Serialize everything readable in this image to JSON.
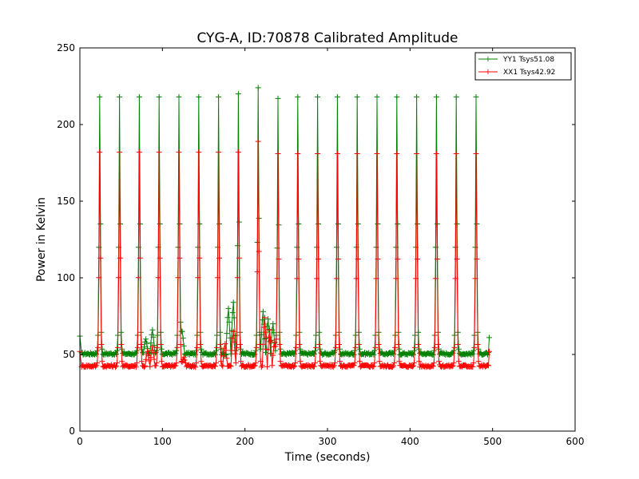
{
  "chart_data": {
    "type": "line",
    "title": "CYG-A, ID:70878 Calibrated Amplitude",
    "xlabel": "Time (seconds)",
    "ylabel": "Power in Kelvin",
    "xlim": [
      0,
      600
    ],
    "ylim": [
      0,
      250
    ],
    "xticks": [
      0,
      100,
      200,
      300,
      400,
      500,
      600
    ],
    "yticks": [
      0,
      50,
      100,
      150,
      200,
      250
    ],
    "xtick_labels": [
      "0",
      "100",
      "200",
      "300",
      "400",
      "500",
      "600"
    ],
    "ytick_labels": [
      "0",
      "50",
      "100",
      "150",
      "200",
      "250"
    ],
    "grid": false,
    "legend_position": "top-right",
    "marker": "+",
    "series": [
      {
        "name": "YY1 Tsys51.08",
        "color": "#008000",
        "baseline": 50.5,
        "peaks": [
          {
            "x": 24,
            "y": 218
          },
          {
            "x": 48,
            "y": 218
          },
          {
            "x": 72,
            "y": 218
          },
          {
            "x": 96,
            "y": 218
          },
          {
            "x": 120,
            "y": 218
          },
          {
            "x": 144,
            "y": 218
          },
          {
            "x": 168,
            "y": 218
          },
          {
            "x": 192,
            "y": 220
          },
          {
            "x": 216,
            "y": 224
          },
          {
            "x": 240,
            "y": 217
          },
          {
            "x": 264,
            "y": 218
          },
          {
            "x": 288,
            "y": 218
          },
          {
            "x": 312,
            "y": 218
          },
          {
            "x": 336,
            "y": 218
          },
          {
            "x": 360,
            "y": 218
          },
          {
            "x": 384,
            "y": 218
          },
          {
            "x": 408,
            "y": 218
          },
          {
            "x": 432,
            "y": 218
          },
          {
            "x": 456,
            "y": 218
          },
          {
            "x": 480,
            "y": 218
          }
        ],
        "bumps": [
          {
            "x": 80,
            "y": 60
          },
          {
            "x": 88,
            "y": 66
          },
          {
            "x": 124,
            "y": 65
          },
          {
            "x": 180,
            "y": 80
          },
          {
            "x": 186,
            "y": 84
          },
          {
            "x": 222,
            "y": 78
          },
          {
            "x": 228,
            "y": 73
          },
          {
            "x": 234,
            "y": 70
          }
        ],
        "start": {
          "x": 0,
          "y": 62
        },
        "end": {
          "x": 496,
          "y": 61
        }
      },
      {
        "name": "XX1 Tsys42.92",
        "color": "#ff0000",
        "baseline": 42.5,
        "peaks": [
          {
            "x": 24,
            "y": 182
          },
          {
            "x": 48,
            "y": 182
          },
          {
            "x": 72,
            "y": 182
          },
          {
            "x": 96,
            "y": 182
          },
          {
            "x": 120,
            "y": 182
          },
          {
            "x": 144,
            "y": 182
          },
          {
            "x": 168,
            "y": 182
          },
          {
            "x": 192,
            "y": 182
          },
          {
            "x": 216,
            "y": 189
          },
          {
            "x": 240,
            "y": 181
          },
          {
            "x": 264,
            "y": 181
          },
          {
            "x": 288,
            "y": 181
          },
          {
            "x": 312,
            "y": 181
          },
          {
            "x": 336,
            "y": 181
          },
          {
            "x": 360,
            "y": 181
          },
          {
            "x": 384,
            "y": 181
          },
          {
            "x": 408,
            "y": 181
          },
          {
            "x": 432,
            "y": 181
          },
          {
            "x": 456,
            "y": 181
          },
          {
            "x": 480,
            "y": 181
          }
        ],
        "bumps": [
          {
            "x": 82,
            "y": 52
          },
          {
            "x": 88,
            "y": 55
          },
          {
            "x": 126,
            "y": 48
          },
          {
            "x": 176,
            "y": 57
          },
          {
            "x": 186,
            "y": 65
          },
          {
            "x": 224,
            "y": 74
          },
          {
            "x": 230,
            "y": 66
          },
          {
            "x": 236,
            "y": 58
          }
        ],
        "start": {
          "x": 0,
          "y": 52
        },
        "end": {
          "x": 496,
          "y": 52
        }
      }
    ]
  }
}
